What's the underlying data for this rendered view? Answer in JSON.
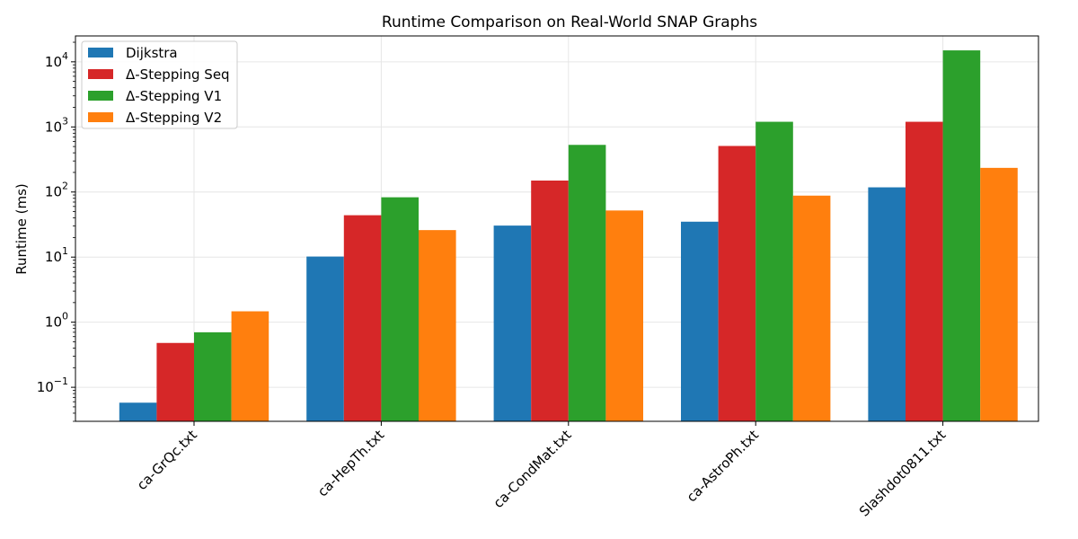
{
  "chart_data": {
    "type": "bar",
    "title": "Runtime Comparison on Real-World SNAP Graphs",
    "xlabel": "",
    "ylabel": "Runtime (ms)",
    "yscale": "log",
    "ylim": [
      0.03,
      25000
    ],
    "yticks": [
      {
        "value": 0.1,
        "base": "10",
        "exp": "−1"
      },
      {
        "value": 1,
        "base": "10",
        "exp": "0"
      },
      {
        "value": 10,
        "base": "10",
        "exp": "1"
      },
      {
        "value": 100,
        "base": "10",
        "exp": "2"
      },
      {
        "value": 1000,
        "base": "10",
        "exp": "3"
      },
      {
        "value": 10000,
        "base": "10",
        "exp": "4"
      }
    ],
    "grid": true,
    "legend_position": "top-left",
    "categories": [
      "ca-GrQc.txt",
      "ca-HepTh.txt",
      "ca-CondMat.txt",
      "ca-AstroPh.txt",
      "Slashdot0811.txt"
    ],
    "series": [
      {
        "name": "Dijkstra",
        "color": "#1f77b4",
        "values": [
          0.058,
          10.2,
          30.5,
          35,
          118
        ]
      },
      {
        "name": "Δ-Stepping Seq",
        "color": "#d62728",
        "values": [
          0.48,
          44,
          150,
          510,
          1200
        ]
      },
      {
        "name": "Δ-Stepping V1",
        "color": "#2ca02c",
        "values": [
          0.7,
          83,
          530,
          1200,
          15000
        ]
      },
      {
        "name": "Δ-Stepping V2",
        "color": "#ff7f0e",
        "values": [
          1.47,
          26,
          52,
          88,
          235
        ]
      }
    ]
  }
}
